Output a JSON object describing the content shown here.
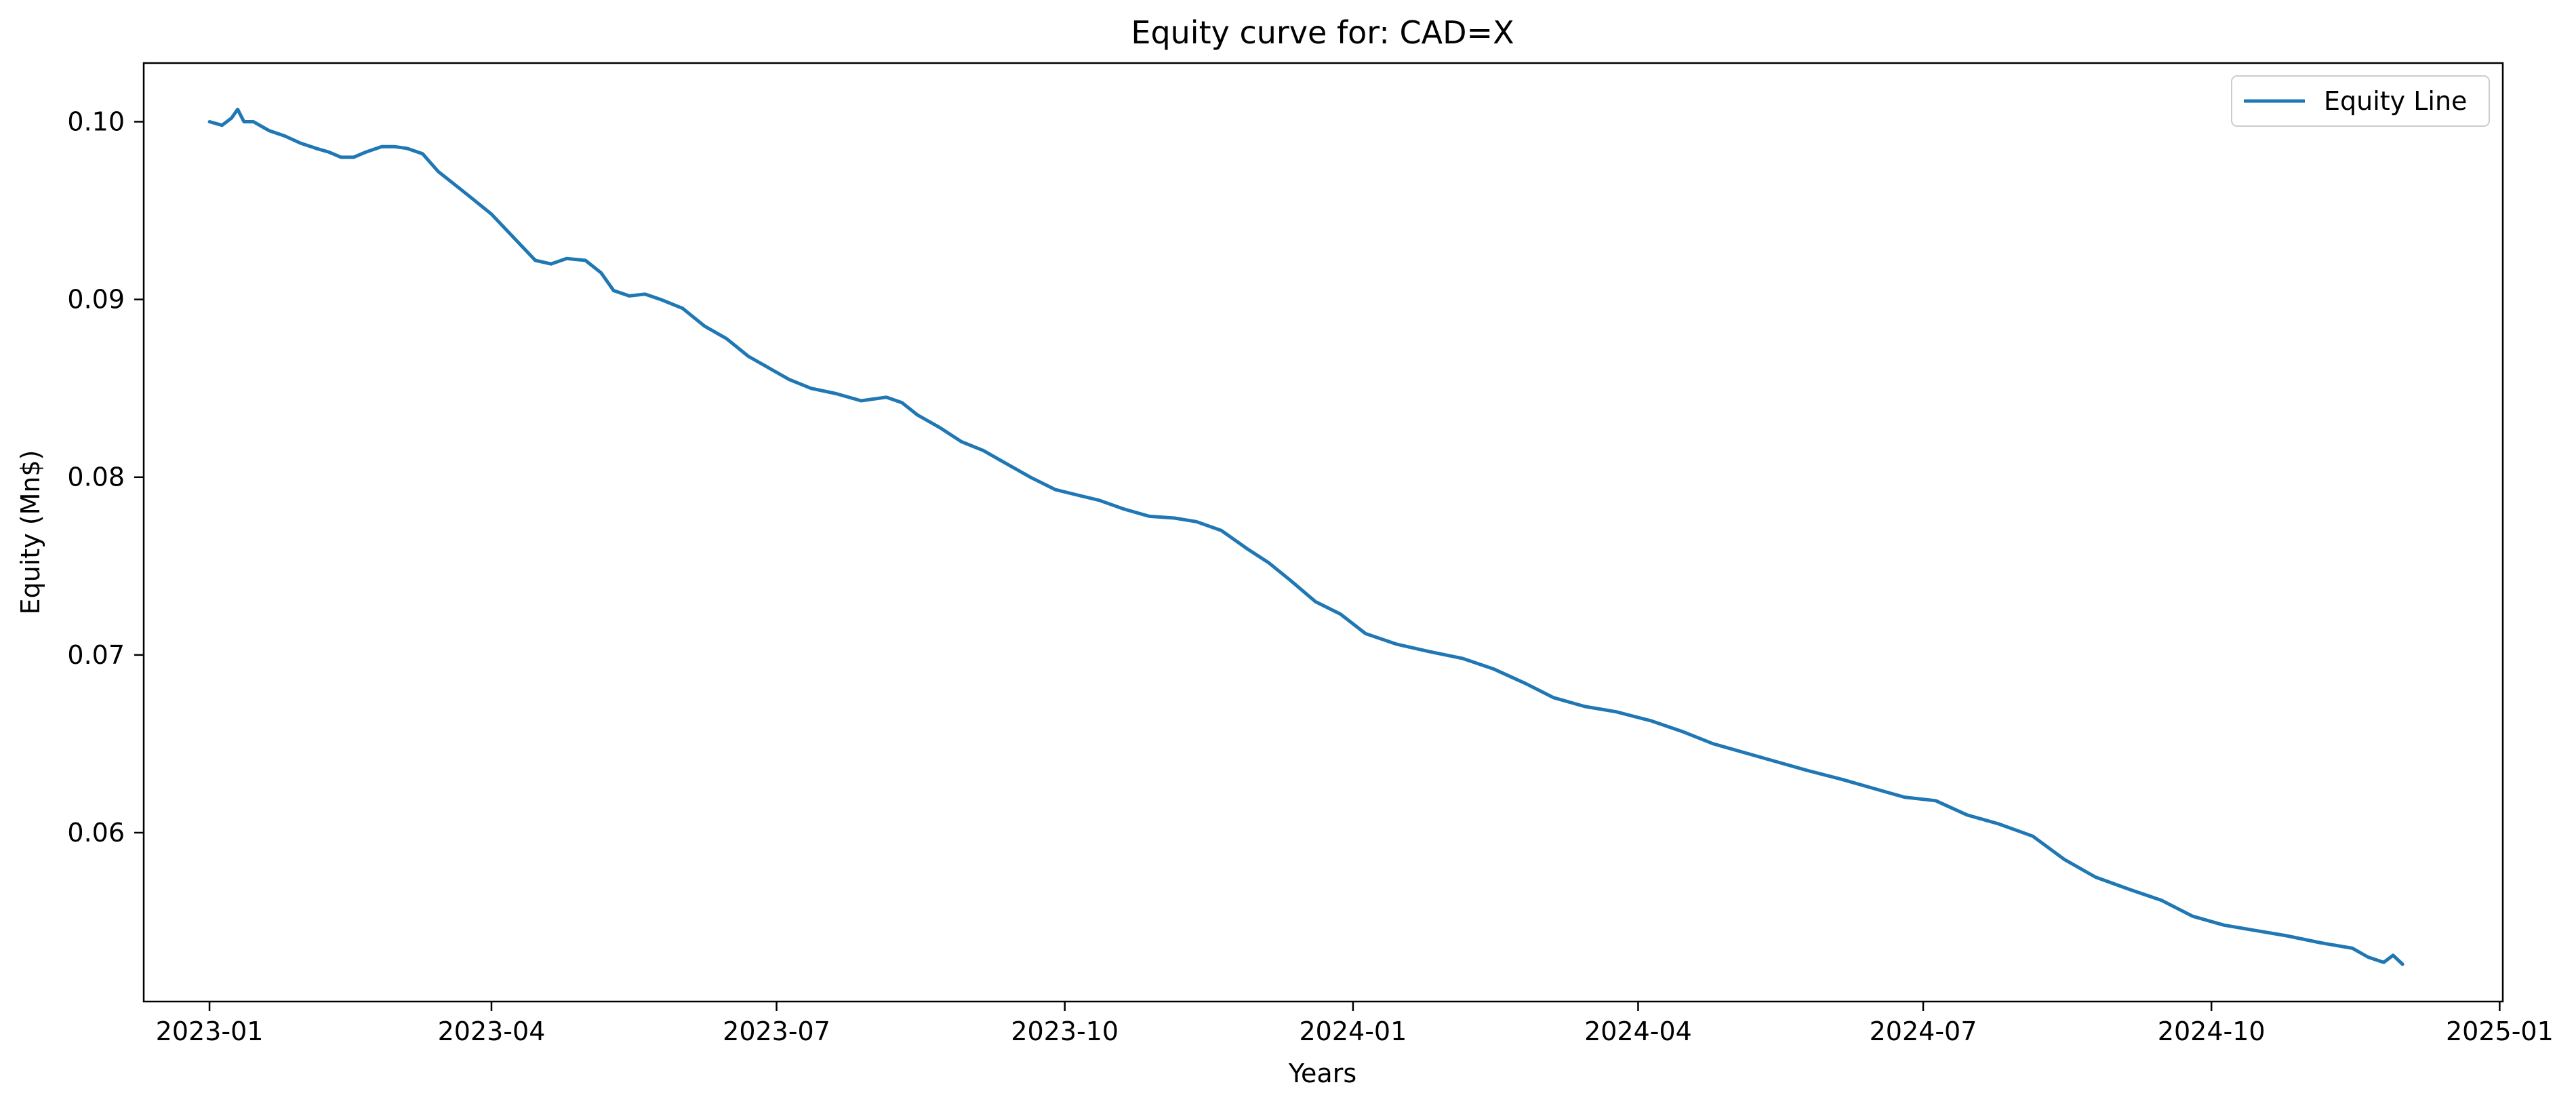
{
  "colors": {
    "line": "#1f77b4",
    "axes": "#000000",
    "background": "#ffffff",
    "legend_border": "#cccccc"
  },
  "chart_data": {
    "type": "line",
    "title": "Equity curve for: CAD=X",
    "xlabel": "Years",
    "ylabel": "Equity (Mn$)",
    "x_axis_type": "date",
    "xlim": [
      "2022-12-11",
      "2025-01-02"
    ],
    "ylim": [
      0.0505,
      0.1033
    ],
    "xticks": [
      "2023-01",
      "2023-04",
      "2023-07",
      "2023-10",
      "2024-01",
      "2024-04",
      "2024-07",
      "2024-10",
      "2025-01"
    ],
    "yticks": [
      "0.06",
      "0.07",
      "0.08",
      "0.09",
      "0.10"
    ],
    "grid": false,
    "legend_position": "top-right",
    "series": [
      {
        "name": "Equity Line",
        "x": [
          "2023-01-01",
          "2023-01-05",
          "2023-01-08",
          "2023-01-10",
          "2023-01-12",
          "2023-01-15",
          "2023-01-20",
          "2023-01-25",
          "2023-01-30",
          "2023-02-04",
          "2023-02-08",
          "2023-02-12",
          "2023-02-16",
          "2023-02-20",
          "2023-02-25",
          "2023-03-01",
          "2023-03-05",
          "2023-03-10",
          "2023-03-15",
          "2023-03-20",
          "2023-03-25",
          "2023-04-01",
          "2023-04-08",
          "2023-04-15",
          "2023-04-20",
          "2023-04-25",
          "2023-05-01",
          "2023-05-06",
          "2023-05-10",
          "2023-05-15",
          "2023-05-20",
          "2023-05-25",
          "2023-06-01",
          "2023-06-08",
          "2023-06-15",
          "2023-06-22",
          "2023-06-28",
          "2023-07-05",
          "2023-07-12",
          "2023-07-20",
          "2023-07-28",
          "2023-08-05",
          "2023-08-10",
          "2023-08-15",
          "2023-08-22",
          "2023-08-29",
          "2023-09-05",
          "2023-09-12",
          "2023-09-20",
          "2023-09-28",
          "2023-10-05",
          "2023-10-12",
          "2023-10-20",
          "2023-10-28",
          "2023-11-05",
          "2023-11-12",
          "2023-11-20",
          "2023-11-28",
          "2023-12-05",
          "2023-12-12",
          "2023-12-20",
          "2023-12-28",
          "2024-01-05",
          "2024-01-15",
          "2024-01-25",
          "2024-02-05",
          "2024-02-15",
          "2024-02-25",
          "2024-03-05",
          "2024-03-15",
          "2024-03-25",
          "2024-04-05",
          "2024-04-15",
          "2024-04-25",
          "2024-05-05",
          "2024-05-15",
          "2024-05-25",
          "2024-06-05",
          "2024-06-15",
          "2024-06-25",
          "2024-07-05",
          "2024-07-15",
          "2024-07-25",
          "2024-08-05",
          "2024-08-15",
          "2024-08-25",
          "2024-09-05",
          "2024-09-15",
          "2024-09-25",
          "2024-10-05",
          "2024-10-15",
          "2024-10-25",
          "2024-11-05",
          "2024-11-15",
          "2024-11-20",
          "2024-11-25",
          "2024-11-28",
          "2024-12-01"
        ],
        "values": [
          0.1,
          0.0998,
          0.1002,
          0.1007,
          0.1,
          0.1,
          0.0995,
          0.0992,
          0.0988,
          0.0985,
          0.0983,
          0.098,
          0.098,
          0.0983,
          0.0986,
          0.0986,
          0.0985,
          0.0982,
          0.0972,
          0.0965,
          0.0958,
          0.0948,
          0.0935,
          0.0922,
          0.092,
          0.0923,
          0.0922,
          0.0915,
          0.0905,
          0.0902,
          0.0903,
          0.09,
          0.0895,
          0.0885,
          0.0878,
          0.0868,
          0.0862,
          0.0855,
          0.085,
          0.0847,
          0.0843,
          0.0845,
          0.0842,
          0.0835,
          0.0828,
          0.082,
          0.0815,
          0.0808,
          0.08,
          0.0793,
          0.079,
          0.0787,
          0.0782,
          0.0778,
          0.0777,
          0.0775,
          0.077,
          0.076,
          0.0752,
          0.0742,
          0.073,
          0.0723,
          0.0712,
          0.0706,
          0.0702,
          0.0698,
          0.0692,
          0.0684,
          0.0676,
          0.0671,
          0.0668,
          0.0663,
          0.0657,
          0.065,
          0.0645,
          0.064,
          0.0635,
          0.063,
          0.0625,
          0.062,
          0.0618,
          0.061,
          0.0605,
          0.0598,
          0.0585,
          0.0575,
          0.0568,
          0.0562,
          0.0553,
          0.0548,
          0.0545,
          0.0542,
          0.0538,
          0.0535,
          0.053,
          0.0527,
          0.0531,
          0.0526
        ]
      }
    ]
  }
}
